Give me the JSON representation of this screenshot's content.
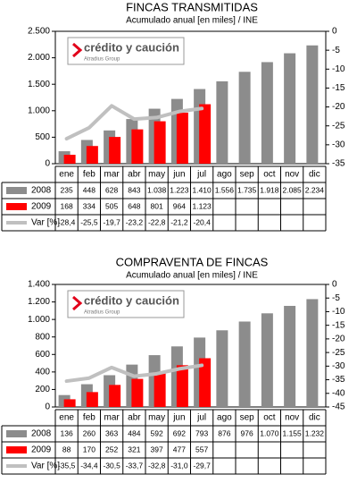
{
  "chart_data": [
    {
      "type": "bar",
      "title": "FINCAS TRANSMITIDAS",
      "subtitle": "Acumulado anual [en miles] / INE",
      "logo": {
        "name": "crédito y caución",
        "group": "Atradius Group"
      },
      "categories": [
        "ene",
        "feb",
        "mar",
        "abr",
        "may",
        "jun",
        "jul",
        "ago",
        "sep",
        "oct",
        "nov",
        "dic"
      ],
      "series": [
        {
          "name": "2008",
          "color": "#8c8c8c",
          "values": [
            235,
            448,
            628,
            843,
            1038,
            1223,
            1410,
            1556,
            1735,
            1918,
            2085,
            2234
          ],
          "value_labels": [
            "235",
            "448",
            "628",
            "843",
            "1.038",
            "1.223",
            "1.410",
            "1.556",
            "1.735",
            "1.918",
            "2.085",
            "2.234"
          ]
        },
        {
          "name": "2009",
          "color": "#ff0000",
          "values": [
            168,
            334,
            505,
            648,
            801,
            964,
            1123,
            null,
            null,
            null,
            null,
            null
          ],
          "value_labels": [
            "168",
            "334",
            "505",
            "648",
            "801",
            "964",
            "1.123",
            null,
            null,
            null,
            null,
            null
          ]
        },
        {
          "name": "Var [%]",
          "color": "#c0c0c0",
          "axis": "y2",
          "values": [
            -28.4,
            -25.5,
            -19.7,
            -23.2,
            -22.8,
            -21.2,
            -20.4,
            null,
            null,
            null,
            null,
            null
          ],
          "value_labels": [
            "-28,4",
            "-25,5",
            "-19,7",
            "-23,2",
            "-22,8",
            "-21,2",
            "-20,4",
            null,
            null,
            null,
            null,
            null
          ]
        }
      ],
      "ylim": [
        0,
        2500
      ],
      "yticks": [
        0,
        500,
        {
          "value": 1000,
          "label": "1.000"
        },
        {
          "value": 1500,
          "label": "1.500"
        },
        {
          "value": 2000,
          "label": "2.000"
        },
        {
          "value": 2500,
          "label": "2.500"
        }
      ],
      "y2lim": [
        -35,
        0
      ],
      "y2ticks": [
        0,
        -5,
        -10,
        -15,
        -20,
        -25,
        -30,
        -35
      ],
      "grid": false
    },
    {
      "type": "bar",
      "title": "COMPRAVENTA DE FINCAS",
      "subtitle": "Acumulado anual [en miles] / INE",
      "logo": {
        "name": "crédito y caución",
        "group": "Atradius Group"
      },
      "categories": [
        "ene",
        "feb",
        "mar",
        "abr",
        "may",
        "jun",
        "jul",
        "ago",
        "sep",
        "oct",
        "nov",
        "dic"
      ],
      "series": [
        {
          "name": "2008",
          "color": "#8c8c8c",
          "values": [
            136,
            260,
            363,
            484,
            592,
            692,
            793,
            876,
            976,
            1070,
            1155,
            1232
          ],
          "value_labels": [
            "136",
            "260",
            "363",
            "484",
            "592",
            "692",
            "793",
            "876",
            "976",
            "1.070",
            "1.155",
            "1.232"
          ]
        },
        {
          "name": "2009",
          "color": "#ff0000",
          "values": [
            88,
            170,
            252,
            321,
            397,
            477,
            557,
            null,
            null,
            null,
            null,
            null
          ],
          "value_labels": [
            "88",
            "170",
            "252",
            "321",
            "397",
            "477",
            "557",
            null,
            null,
            null,
            null,
            null
          ]
        },
        {
          "name": "Var [%]",
          "color": "#c0c0c0",
          "axis": "y2",
          "values": [
            -35.5,
            -34.4,
            -30.5,
            -33.7,
            -32.8,
            -31.0,
            -29.7,
            null,
            null,
            null,
            null,
            null
          ],
          "value_labels": [
            "-35,5",
            "-34,4",
            "-30,5",
            "-33,7",
            "-32,8",
            "-31,0",
            "-29,7",
            null,
            null,
            null,
            null,
            null
          ]
        }
      ],
      "ylim": [
        0,
        1400
      ],
      "yticks": [
        0,
        200,
        400,
        600,
        800,
        {
          "value": 1000,
          "label": "1.000"
        },
        {
          "value": 1200,
          "label": "1.200"
        },
        {
          "value": 1400,
          "label": "1.400"
        }
      ],
      "y2lim": [
        -45,
        0
      ],
      "y2ticks": [
        0,
        -5,
        -10,
        -15,
        -20,
        -25,
        -30,
        -35,
        -40,
        -45
      ],
      "grid": false
    }
  ]
}
